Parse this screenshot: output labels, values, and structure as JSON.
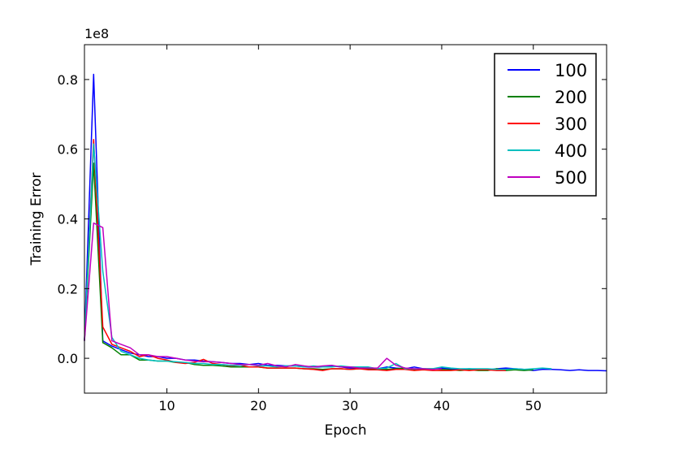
{
  "chart_data": {
    "type": "line",
    "title": "",
    "xlabel": "Epoch",
    "ylabel": "Training Error",
    "y_scale_label": "1e8",
    "xlim": [
      1,
      58
    ],
    "ylim": [
      -0.1,
      0.9
    ],
    "x_ticks": [
      10,
      20,
      30,
      40,
      50
    ],
    "x_tick_labels": [
      "10",
      "20",
      "30",
      "40",
      "50"
    ],
    "y_ticks": [
      0.0,
      0.2,
      0.4,
      0.6,
      0.8
    ],
    "y_tick_labels": [
      "0.0",
      "0.2",
      "0.4",
      "0.6",
      "0.8"
    ],
    "grid": false,
    "legend": "top-right",
    "series": [
      {
        "name": "100",
        "color": "#0000ff",
        "x": [
          1,
          2,
          3,
          4,
          5,
          6,
          7,
          8,
          9,
          10,
          11,
          12,
          13,
          14,
          15,
          16,
          17,
          18,
          19,
          20,
          21,
          22,
          23,
          24,
          25,
          26,
          27,
          28,
          29,
          30,
          31,
          32,
          33,
          34,
          35,
          36,
          37,
          38,
          39,
          40,
          41,
          42,
          43,
          44,
          45,
          46,
          47,
          48,
          49,
          50,
          51,
          52,
          53,
          54,
          55,
          56,
          57,
          58
        ],
        "values": [
          0.05,
          0.815,
          0.05,
          0.035,
          0.025,
          0.015,
          0.01,
          0.005,
          0.005,
          0.0,
          0.0,
          -0.005,
          -0.005,
          -0.008,
          -0.01,
          -0.012,
          -0.015,
          -0.015,
          -0.018,
          -0.015,
          -0.02,
          -0.02,
          -0.022,
          -0.022,
          -0.025,
          -0.025,
          -0.025,
          -0.022,
          -0.025,
          -0.028,
          -0.028,
          -0.028,
          -0.03,
          -0.025,
          -0.028,
          -0.03,
          -0.025,
          -0.03,
          -0.032,
          -0.028,
          -0.03,
          -0.032,
          -0.03,
          -0.032,
          -0.033,
          -0.03,
          -0.028,
          -0.03,
          -0.032,
          -0.035,
          -0.032,
          -0.032,
          -0.033,
          -0.035,
          -0.033,
          -0.035,
          -0.035,
          -0.036
        ]
      },
      {
        "name": "200",
        "color": "#008000",
        "x": [
          1,
          2,
          3,
          4,
          5,
          6,
          7,
          8,
          9,
          10,
          11,
          12,
          13,
          14,
          15,
          16,
          17,
          18,
          19,
          20,
          21,
          22,
          23,
          24,
          25,
          26,
          27,
          28,
          29,
          30,
          31,
          32,
          33,
          34,
          35,
          36,
          37,
          38,
          39,
          40,
          41,
          42,
          43,
          44,
          45,
          46,
          47,
          48,
          49,
          50
        ],
        "values": [
          0.05,
          0.56,
          0.045,
          0.03,
          0.01,
          0.01,
          -0.005,
          -0.005,
          -0.008,
          -0.008,
          -0.012,
          -0.012,
          -0.018,
          -0.02,
          -0.02,
          -0.022,
          -0.025,
          -0.025,
          -0.025,
          -0.025,
          -0.028,
          -0.028,
          -0.028,
          -0.028,
          -0.03,
          -0.03,
          -0.032,
          -0.03,
          -0.03,
          -0.032,
          -0.03,
          -0.03,
          -0.03,
          -0.032,
          -0.03,
          -0.028,
          -0.032,
          -0.03,
          -0.03,
          -0.032,
          -0.033,
          -0.035,
          -0.033,
          -0.035,
          -0.035,
          -0.03,
          -0.035,
          -0.033,
          -0.035,
          -0.033
        ]
      },
      {
        "name": "300",
        "color": "#ff0000",
        "x": [
          1,
          2,
          3,
          4,
          5,
          6,
          7,
          8,
          9,
          10,
          11,
          12,
          13,
          14,
          15,
          16,
          17,
          18,
          19,
          20,
          21,
          22,
          23,
          24,
          25,
          26,
          27,
          28,
          29,
          30,
          31,
          32,
          33,
          34,
          35,
          36,
          37,
          38,
          39,
          40,
          41,
          42,
          43,
          44,
          45,
          46,
          47
        ],
        "values": [
          0.05,
          0.628,
          0.09,
          0.04,
          0.03,
          0.02,
          0.005,
          0.01,
          0.0,
          -0.005,
          -0.012,
          -0.015,
          -0.012,
          -0.003,
          -0.015,
          -0.018,
          -0.022,
          -0.02,
          -0.025,
          -0.025,
          -0.028,
          -0.028,
          -0.028,
          -0.028,
          -0.03,
          -0.032,
          -0.035,
          -0.03,
          -0.03,
          -0.032,
          -0.03,
          -0.033,
          -0.033,
          -0.035,
          -0.032,
          -0.032,
          -0.035,
          -0.033,
          -0.035,
          -0.035,
          -0.035,
          -0.033,
          -0.035,
          -0.033,
          -0.033,
          -0.035,
          -0.035
        ]
      },
      {
        "name": "400",
        "color": "#00bfbf",
        "x": [
          1,
          2,
          3,
          4,
          5,
          6,
          7,
          8,
          9,
          10,
          11,
          12,
          13,
          14,
          15,
          16,
          17,
          18,
          19,
          20,
          21,
          22,
          23,
          24,
          25,
          26,
          27,
          28,
          29,
          30,
          31,
          32,
          33,
          34,
          35,
          36,
          37,
          38,
          39,
          40,
          41,
          42,
          43,
          44,
          45,
          46,
          47,
          48,
          49,
          50,
          51,
          52
        ],
        "values": [
          0.05,
          0.615,
          0.25,
          0.06,
          0.02,
          0.01,
          0.0,
          -0.005,
          -0.008,
          -0.008,
          -0.01,
          -0.012,
          -0.015,
          -0.015,
          -0.018,
          -0.018,
          -0.02,
          -0.02,
          -0.018,
          -0.022,
          -0.022,
          -0.025,
          -0.022,
          -0.022,
          -0.025,
          -0.022,
          -0.025,
          -0.025,
          -0.022,
          -0.025,
          -0.025,
          -0.025,
          -0.03,
          -0.028,
          -0.015,
          -0.03,
          -0.03,
          -0.03,
          -0.03,
          -0.025,
          -0.028,
          -0.03,
          -0.03,
          -0.03,
          -0.03,
          -0.032,
          -0.032,
          -0.03,
          -0.032,
          -0.03,
          -0.028,
          -0.03
        ]
      },
      {
        "name": "500",
        "color": "#bf00bf",
        "x": [
          1,
          2,
          3,
          4,
          5,
          6,
          7,
          8,
          9,
          10,
          11,
          12,
          13,
          14,
          15,
          16,
          17,
          18,
          19,
          20,
          21,
          22,
          23,
          24,
          25,
          26,
          27,
          28,
          29,
          30,
          31,
          32,
          33,
          34,
          35,
          36,
          37,
          38,
          39,
          40
        ],
        "values": [
          0.05,
          0.388,
          0.375,
          0.05,
          0.04,
          0.03,
          0.01,
          0.01,
          0.005,
          0.005,
          0.0,
          -0.005,
          -0.008,
          -0.01,
          -0.01,
          -0.012,
          -0.015,
          -0.018,
          -0.018,
          -0.02,
          -0.015,
          -0.022,
          -0.025,
          -0.018,
          -0.022,
          -0.025,
          -0.022,
          -0.02,
          -0.025,
          -0.025,
          -0.028,
          -0.028,
          -0.028,
          0.0,
          -0.02,
          -0.028,
          -0.03,
          -0.03,
          -0.032,
          -0.03
        ]
      }
    ]
  }
}
